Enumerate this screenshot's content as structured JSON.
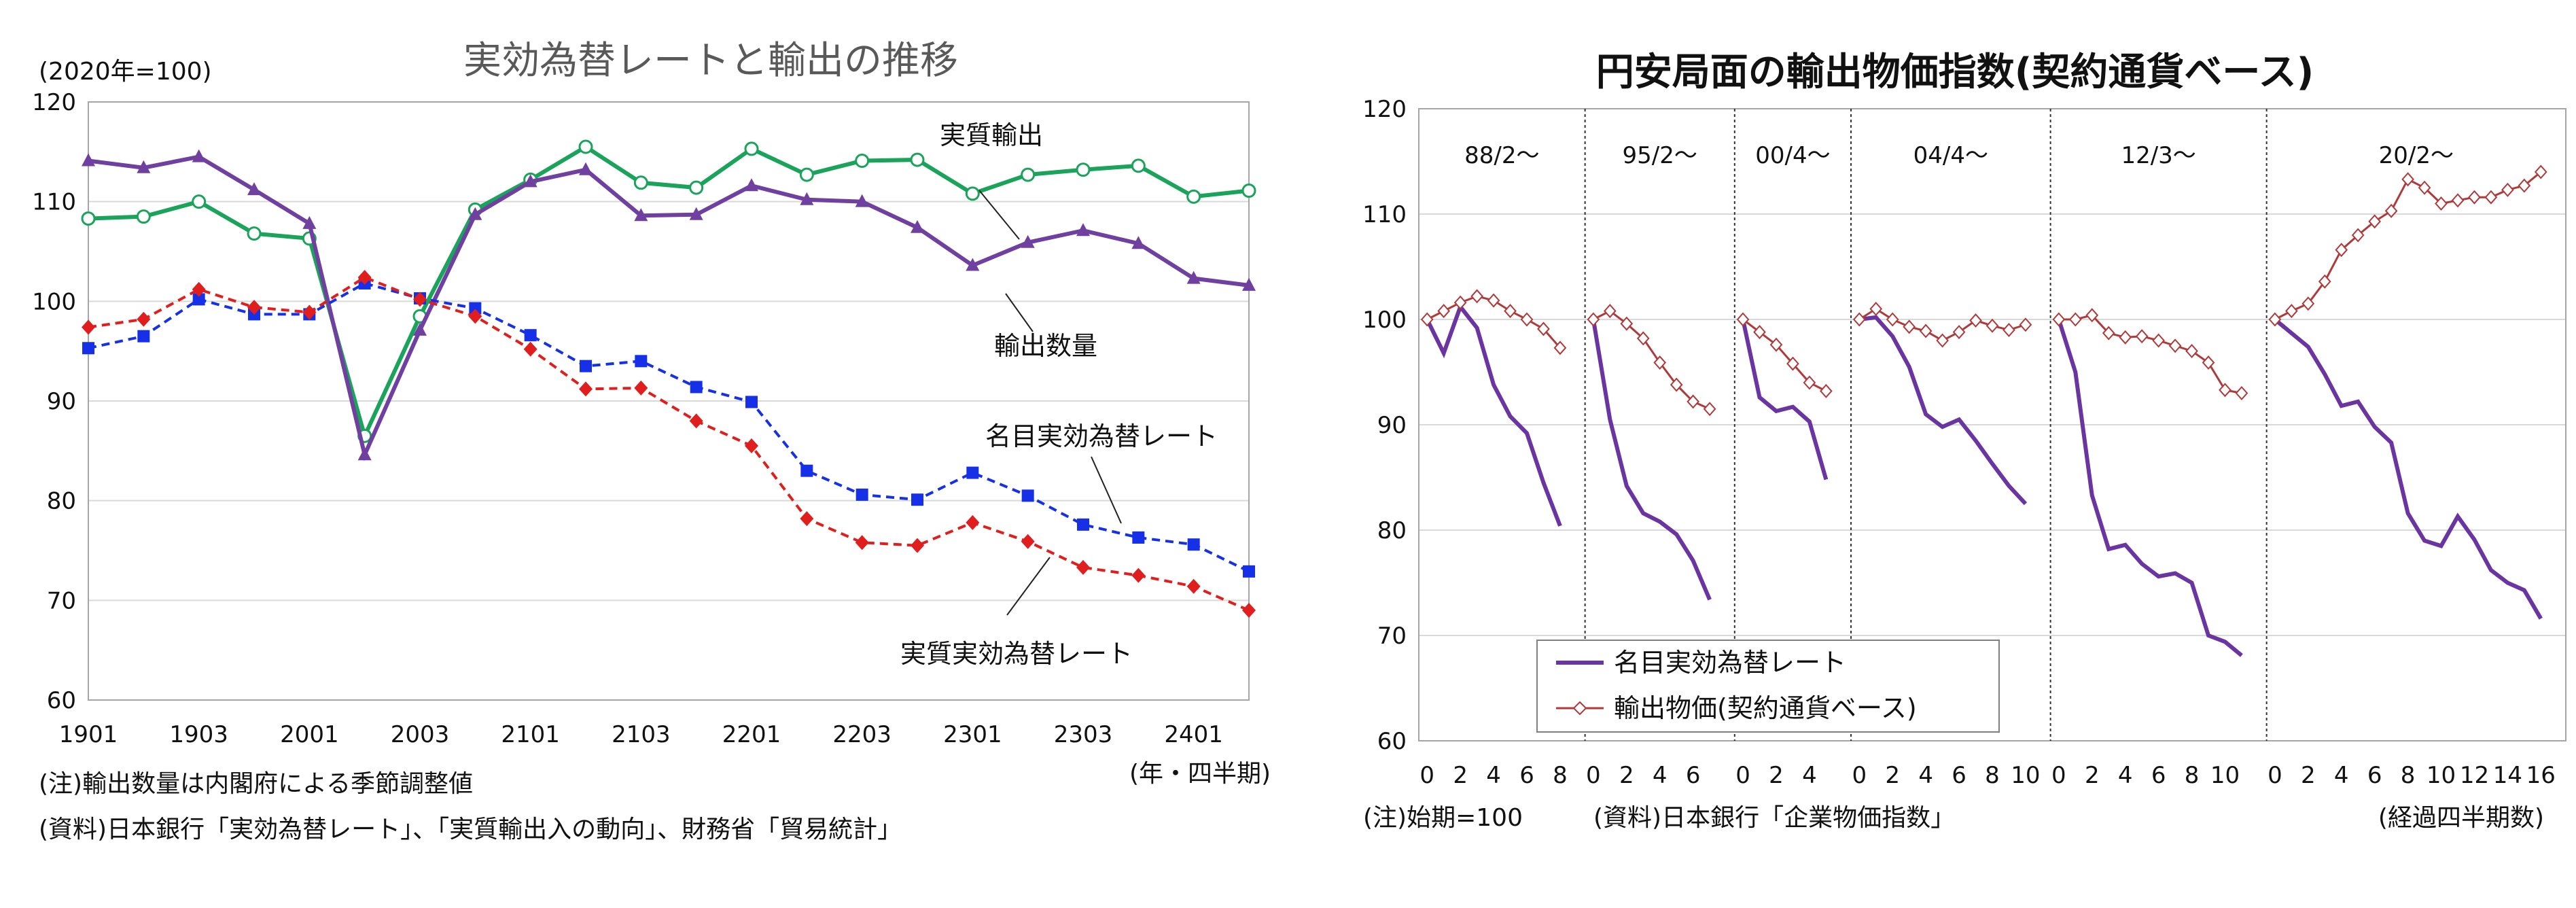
{
  "chart_data": [
    {
      "type": "line",
      "title": "実効為替レートと輸出の推移",
      "ylabel": "(2020年=100)",
      "xlabel": "(年・四半期)",
      "ylim": [
        60,
        120
      ],
      "yticks": [
        "60",
        "70",
        "80",
        "90",
        "100",
        "110",
        "120"
      ],
      "x_tick_labels": [
        "1901",
        "1903",
        "2001",
        "2003",
        "2101",
        "2103",
        "2201",
        "2203",
        "2301",
        "2303",
        "2401"
      ],
      "series": [
        {
          "name": "実質輸出",
          "color": "#1aa35a",
          "marker": "circle-open",
          "dash": false,
          "values": [
            108.3,
            108.5,
            110.0,
            106.8,
            106.3,
            86.5,
            98.5,
            109.2,
            112.2,
            115.5,
            111.9,
            111.4,
            115.3,
            112.7,
            114.1,
            114.2,
            110.8,
            112.7,
            113.2,
            113.6,
            110.5,
            111.1
          ]
        },
        {
          "name": "輸出数量",
          "color": "#7040a0",
          "marker": "triangle",
          "dash": false,
          "values": [
            114.1,
            113.4,
            114.5,
            111.2,
            107.8,
            84.6,
            97.1,
            108.7,
            112.0,
            113.2,
            108.6,
            108.7,
            111.6,
            110.2,
            110.0,
            107.4,
            103.6,
            105.9,
            107.1,
            105.8,
            102.3,
            101.6
          ]
        },
        {
          "name": "名目実効為替レート",
          "color": "#1530e6",
          "marker": "square",
          "dash": true,
          "values": [
            95.3,
            96.5,
            100.2,
            98.7,
            98.7,
            101.8,
            100.3,
            99.3,
            96.6,
            93.5,
            94.0,
            91.4,
            89.9,
            83.0,
            80.6,
            80.1,
            82.8,
            80.5,
            77.6,
            76.3,
            75.6,
            72.9
          ]
        },
        {
          "name": "実質実効為替レート",
          "color": "#e01e1e",
          "marker": "diamond",
          "dash": true,
          "values": [
            97.4,
            98.2,
            101.2,
            99.4,
            98.9,
            102.4,
            100.2,
            98.5,
            95.2,
            91.2,
            91.3,
            88.0,
            85.5,
            78.2,
            75.8,
            75.5,
            77.8,
            75.9,
            73.3,
            72.5,
            71.4,
            69.0
          ]
        }
      ],
      "series_labels": [
        "実質輸出",
        "輸出数量",
        "名目実効為替レート",
        "実質実効為替レート"
      ],
      "notes": [
        "(注)輸出数量は内閣府による季節調整値",
        "(資料)日本銀行「実効為替レート」、「実質輸出入の動向」、財務省「貿易統計」"
      ]
    },
    {
      "type": "line",
      "title": "円安局面の輸出物価指数(契約通貨ベース)",
      "ylim": [
        60,
        120
      ],
      "yticks": [
        "60",
        "70",
        "80",
        "90",
        "100",
        "110",
        "120"
      ],
      "xlabel": "(経過四半期数)",
      "legend": {
        "position": "bottom-left",
        "entries": [
          "名目実効為替レート",
          "輸出物価(契約通貨ベース)"
        ]
      },
      "colors": {
        "rate": "#6a35a0",
        "price": "#b03a3a"
      },
      "segments": [
        {
          "label": "88/2〜",
          "ticks": [
            "0",
            "2",
            "4",
            "6",
            "8"
          ],
          "rate": [
            100,
            96.8,
            101.2,
            99.2,
            93.8,
            90.8,
            89.2,
            84.5,
            80.4
          ],
          "price": [
            100,
            100.8,
            101.6,
            102.2,
            101.8,
            100.8,
            100,
            99.1,
            97.3
          ]
        },
        {
          "label": "95/2〜",
          "ticks": [
            "0",
            "2",
            "4",
            "6"
          ],
          "rate": [
            100,
            90.5,
            84.2,
            81.6,
            80.8,
            79.6,
            77.1,
            73.4
          ],
          "price": [
            100,
            100.8,
            99.6,
            98.2,
            95.9,
            93.8,
            92.2,
            91.5
          ]
        },
        {
          "label": "00/4〜",
          "ticks": [
            "0",
            "2",
            "4"
          ],
          "rate": [
            100,
            92.6,
            91.3,
            91.7,
            90.3,
            84.8
          ],
          "price": [
            100,
            98.8,
            97.6,
            95.8,
            94.0,
            93.2
          ]
        },
        {
          "label": "04/4〜",
          "ticks": [
            "0",
            "2",
            "4",
            "6",
            "8",
            "10"
          ],
          "rate": [
            100,
            100.2,
            98.4,
            95.5,
            91.0,
            89.8,
            90.5,
            88.5,
            86.3,
            84.2,
            82.5
          ],
          "price": [
            100,
            101.0,
            100.0,
            99.3,
            98.9,
            98.0,
            98.8,
            99.9,
            99.4,
            99.0,
            99.5
          ]
        },
        {
          "label": "12/3〜",
          "ticks": [
            "0",
            "2",
            "4",
            "6",
            "8",
            "10"
          ],
          "rate": [
            100,
            95.0,
            83.3,
            78.2,
            78.6,
            76.8,
            75.6,
            75.9,
            75.0,
            70.0,
            69.4,
            68.1
          ],
          "price": [
            100,
            100.0,
            100.4,
            98.7,
            98.3,
            98.4,
            98.0,
            97.5,
            97.0,
            95.9,
            93.3,
            93.0
          ]
        },
        {
          "label": "20/2〜",
          "ticks": [
            "0",
            "2",
            "4",
            "6",
            "8",
            "10",
            "12",
            "14",
            "16"
          ],
          "rate": [
            100,
            98.7,
            97.4,
            94.8,
            91.8,
            92.2,
            89.8,
            88.3,
            81.6,
            79.0,
            78.5,
            81.3,
            79.1,
            76.2,
            75.0,
            74.3,
            71.6
          ],
          "price": [
            100,
            100.8,
            101.5,
            103.6,
            106.6,
            108.0,
            109.3,
            110.3,
            113.3,
            112.5,
            111.0,
            111.3,
            111.6,
            111.6,
            112.3,
            112.7,
            114.0
          ]
        }
      ],
      "notes": [
        "(注)始期=100",
        "(資料)日本銀行「企業物価指数」"
      ]
    }
  ]
}
